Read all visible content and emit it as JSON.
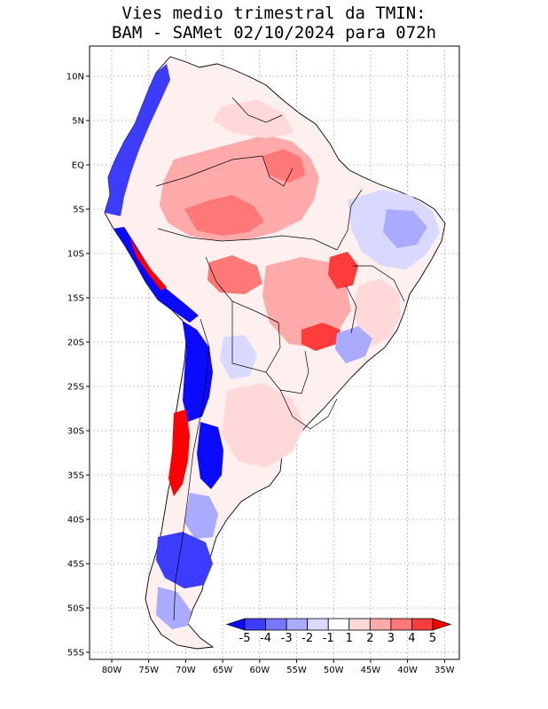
{
  "title_line1": "Vies medio trimestral da TMIN:",
  "title_line2": "BAM - SAMet 02/10/2024  para 072h",
  "colors": {
    "b5": "#0a0aff",
    "b4": "#3c3cff",
    "b3": "#7878ff",
    "b2": "#aaaaff",
    "b1": "#d9d9ff",
    "w": "#ffffff",
    "r1": "#ffd9d9",
    "r2": "#ffaaaa",
    "r3": "#ff7878",
    "r4": "#ff3c3c",
    "r5": "#ff0000"
  },
  "lon_labels": [
    "80W",
    "75W",
    "70W",
    "65W",
    "60W",
    "55W",
    "50W",
    "45W",
    "40W",
    "35W"
  ],
  "lat_labels": [
    "10N",
    "5N",
    "EQ",
    "5S",
    "10S",
    "15S",
    "20S",
    "25S",
    "30S",
    "35S",
    "40S",
    "45S",
    "50S",
    "55S"
  ],
  "colorbar": {
    "labels": [
      "-5",
      "-4",
      "-3",
      "-2",
      "-1",
      "1",
      "2",
      "3",
      "4",
      "5"
    ]
  }
}
